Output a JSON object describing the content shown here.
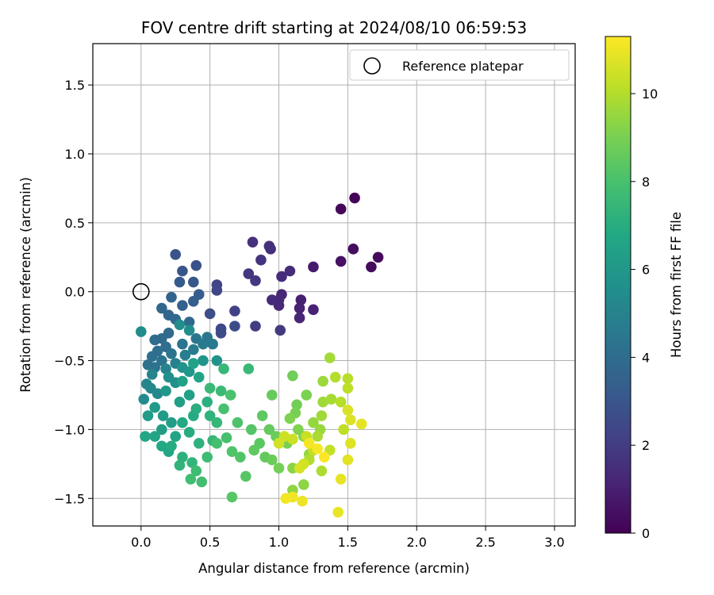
{
  "chart_data": {
    "type": "scatter",
    "title": "FOV centre drift starting at 2024/08/10 06:59:53",
    "xlabel": "Angular distance from reference (arcmin)",
    "ylabel": "Rotation from reference (arcmin)",
    "xlim": [
      -0.35,
      3.15
    ],
    "ylim": [
      -1.7,
      1.8
    ],
    "xticks": [
      0.0,
      0.5,
      1.0,
      1.5,
      2.0,
      2.5,
      3.0
    ],
    "xtick_labels": [
      "0.0",
      "0.5",
      "1.0",
      "1.5",
      "2.0",
      "2.5",
      "3.0"
    ],
    "yticks": [
      -1.5,
      -1.0,
      -0.5,
      0.0,
      0.5,
      1.0,
      1.5
    ],
    "ytick_labels": [
      "−1.5",
      "−1.0",
      "−0.5",
      "0.0",
      "0.5",
      "1.0",
      "1.5"
    ],
    "grid": true,
    "legend": {
      "position": "top-right",
      "entries": [
        "Reference platepar"
      ]
    },
    "reference_point": {
      "x": 0.0,
      "y": 0.0
    },
    "colorbar": {
      "label": "Hours from first FF file",
      "min": 0,
      "max": 11.3,
      "ticks": [
        0,
        2,
        4,
        6,
        8,
        10
      ],
      "tick_labels": [
        "0",
        "2",
        "4",
        "6",
        "8",
        "10"
      ],
      "colormap": "viridis"
    },
    "points": [
      {
        "x": 1.55,
        "y": 0.68,
        "h": 0.1
      },
      {
        "x": 1.45,
        "y": 0.6,
        "h": 0.2
      },
      {
        "x": 1.72,
        "y": 0.25,
        "h": 0.3
      },
      {
        "x": 1.67,
        "y": 0.18,
        "h": 0.35
      },
      {
        "x": 1.54,
        "y": 0.31,
        "h": 0.4
      },
      {
        "x": 1.45,
        "y": 0.22,
        "h": 0.5
      },
      {
        "x": 1.25,
        "y": 0.18,
        "h": 0.8
      },
      {
        "x": 1.16,
        "y": -0.06,
        "h": 1.0
      },
      {
        "x": 1.15,
        "y": -0.12,
        "h": 1.05
      },
      {
        "x": 1.25,
        "y": -0.13,
        "h": 1.1
      },
      {
        "x": 1.15,
        "y": -0.19,
        "h": 1.15
      },
      {
        "x": 1.02,
        "y": -0.02,
        "h": 1.2
      },
      {
        "x": 1.0,
        "y": -0.06,
        "h": 1.25
      },
      {
        "x": 1.0,
        "y": -0.1,
        "h": 1.3
      },
      {
        "x": 0.95,
        "y": -0.06,
        "h": 1.35
      },
      {
        "x": 1.08,
        "y": 0.15,
        "h": 1.4
      },
      {
        "x": 1.02,
        "y": 0.11,
        "h": 1.45
      },
      {
        "x": 0.94,
        "y": 0.31,
        "h": 1.5
      },
      {
        "x": 0.93,
        "y": 0.33,
        "h": 1.55
      },
      {
        "x": 0.81,
        "y": 0.36,
        "h": 1.6
      },
      {
        "x": 0.87,
        "y": 0.23,
        "h": 1.7
      },
      {
        "x": 0.78,
        "y": 0.13,
        "h": 1.75
      },
      {
        "x": 0.83,
        "y": 0.08,
        "h": 1.8
      },
      {
        "x": 1.01,
        "y": -0.28,
        "h": 1.9
      },
      {
        "x": 0.83,
        "y": -0.25,
        "h": 2.0
      },
      {
        "x": 0.68,
        "y": -0.14,
        "h": 2.2
      },
      {
        "x": 0.55,
        "y": 0.05,
        "h": 2.3
      },
      {
        "x": 0.55,
        "y": 0.01,
        "h": 2.4
      },
      {
        "x": 0.58,
        "y": -0.27,
        "h": 2.5
      },
      {
        "x": 0.58,
        "y": -0.3,
        "h": 2.55
      },
      {
        "x": 0.68,
        "y": -0.25,
        "h": 2.6
      },
      {
        "x": 0.5,
        "y": -0.16,
        "h": 2.7
      },
      {
        "x": 0.4,
        "y": 0.19,
        "h": 2.8
      },
      {
        "x": 0.25,
        "y": 0.27,
        "h": 2.9
      },
      {
        "x": 0.3,
        "y": 0.15,
        "h": 3.0
      },
      {
        "x": 0.38,
        "y": 0.07,
        "h": 3.1
      },
      {
        "x": 0.28,
        "y": 0.07,
        "h": 3.2
      },
      {
        "x": 0.42,
        "y": -0.02,
        "h": 3.3
      },
      {
        "x": 0.38,
        "y": -0.07,
        "h": 3.4
      },
      {
        "x": 0.3,
        "y": -0.1,
        "h": 3.5
      },
      {
        "x": 0.22,
        "y": -0.04,
        "h": 3.6
      },
      {
        "x": 0.2,
        "y": -0.17,
        "h": 3.7
      },
      {
        "x": 0.15,
        "y": -0.12,
        "h": 3.75
      },
      {
        "x": 0.25,
        "y": -0.2,
        "h": 3.8
      },
      {
        "x": 0.35,
        "y": -0.22,
        "h": 3.85
      },
      {
        "x": 0.2,
        "y": -0.3,
        "h": 3.9
      },
      {
        "x": 0.15,
        "y": -0.34,
        "h": 3.95
      },
      {
        "x": 0.1,
        "y": -0.35,
        "h": 4.0
      },
      {
        "x": 0.18,
        "y": -0.4,
        "h": 4.05
      },
      {
        "x": 0.12,
        "y": -0.43,
        "h": 4.1
      },
      {
        "x": 0.08,
        "y": -0.47,
        "h": 4.15
      },
      {
        "x": 0.05,
        "y": -0.53,
        "h": 4.2
      },
      {
        "x": 0.1,
        "y": -0.55,
        "h": 4.25
      },
      {
        "x": 0.15,
        "y": -0.5,
        "h": 4.3
      },
      {
        "x": 0.22,
        "y": -0.45,
        "h": 4.35
      },
      {
        "x": 0.3,
        "y": -0.38,
        "h": 4.4
      },
      {
        "x": 0.4,
        "y": -0.34,
        "h": 4.45
      },
      {
        "x": 0.48,
        "y": -0.33,
        "h": 4.5
      },
      {
        "x": 0.52,
        "y": -0.38,
        "h": 4.55
      },
      {
        "x": 0.45,
        "y": -0.38,
        "h": 4.6
      },
      {
        "x": 0.38,
        "y": -0.42,
        "h": 4.7
      },
      {
        "x": 0.32,
        "y": -0.46,
        "h": 4.8
      },
      {
        "x": 0.25,
        "y": -0.52,
        "h": 4.9
      },
      {
        "x": 0.18,
        "y": -0.56,
        "h": 5.0
      },
      {
        "x": 0.08,
        "y": -0.6,
        "h": 5.05
      },
      {
        "x": 0.04,
        "y": -0.67,
        "h": 5.1
      },
      {
        "x": 0.07,
        "y": -0.7,
        "h": 5.2
      },
      {
        "x": 0.12,
        "y": -0.74,
        "h": 5.3
      },
      {
        "x": 0.02,
        "y": -0.78,
        "h": 5.35
      },
      {
        "x": 0.0,
        "y": -0.29,
        "h": 5.4
      },
      {
        "x": 0.28,
        "y": -0.24,
        "h": 5.45
      },
      {
        "x": 0.35,
        "y": -0.28,
        "h": 5.5
      },
      {
        "x": 0.2,
        "y": -0.62,
        "h": 5.55
      },
      {
        "x": 0.25,
        "y": -0.66,
        "h": 5.6
      },
      {
        "x": 0.3,
        "y": -0.55,
        "h": 5.7
      },
      {
        "x": 0.55,
        "y": -0.5,
        "h": 5.75
      },
      {
        "x": 0.45,
        "y": -0.5,
        "h": 5.8
      },
      {
        "x": 0.35,
        "y": -0.58,
        "h": 5.9
      },
      {
        "x": 0.18,
        "y": -0.72,
        "h": 6.0
      },
      {
        "x": 0.1,
        "y": -0.84,
        "h": 6.1
      },
      {
        "x": 0.16,
        "y": -0.9,
        "h": 6.15
      },
      {
        "x": 0.05,
        "y": -0.9,
        "h": 6.2
      },
      {
        "x": 0.22,
        "y": -0.95,
        "h": 6.25
      },
      {
        "x": 0.15,
        "y": -1.0,
        "h": 6.3
      },
      {
        "x": 0.28,
        "y": -0.8,
        "h": 6.35
      },
      {
        "x": 0.35,
        "y": -0.75,
        "h": 6.4
      },
      {
        "x": 0.3,
        "y": -0.65,
        "h": 6.45
      },
      {
        "x": 0.38,
        "y": -0.52,
        "h": 6.5
      },
      {
        "x": 0.42,
        "y": -0.62,
        "h": 6.55
      },
      {
        "x": 0.25,
        "y": -1.05,
        "h": 6.6
      },
      {
        "x": 0.1,
        "y": -1.05,
        "h": 6.65
      },
      {
        "x": 0.03,
        "y": -1.05,
        "h": 6.7
      },
      {
        "x": 0.2,
        "y": -1.16,
        "h": 6.75
      },
      {
        "x": 0.15,
        "y": -1.12,
        "h": 6.8
      },
      {
        "x": 0.3,
        "y": -0.95,
        "h": 6.85
      },
      {
        "x": 0.38,
        "y": -0.9,
        "h": 6.9
      },
      {
        "x": 0.22,
        "y": -1.12,
        "h": 6.95
      },
      {
        "x": 0.35,
        "y": -1.02,
        "h": 7.0
      },
      {
        "x": 0.4,
        "y": -0.85,
        "h": 7.05
      },
      {
        "x": 0.48,
        "y": -0.8,
        "h": 7.1
      },
      {
        "x": 0.3,
        "y": -1.2,
        "h": 7.15
      },
      {
        "x": 0.42,
        "y": -1.1,
        "h": 7.2
      },
      {
        "x": 0.5,
        "y": -0.9,
        "h": 7.25
      },
      {
        "x": 0.28,
        "y": -1.26,
        "h": 7.3
      },
      {
        "x": 0.37,
        "y": -1.24,
        "h": 7.35
      },
      {
        "x": 0.52,
        "y": -1.08,
        "h": 7.4
      },
      {
        "x": 0.55,
        "y": -0.95,
        "h": 7.45
      },
      {
        "x": 0.6,
        "y": -0.56,
        "h": 7.5
      },
      {
        "x": 0.78,
        "y": -0.56,
        "h": 7.55
      },
      {
        "x": 0.5,
        "y": -0.7,
        "h": 7.6
      },
      {
        "x": 0.58,
        "y": -0.72,
        "h": 7.65
      },
      {
        "x": 0.48,
        "y": -1.2,
        "h": 7.7
      },
      {
        "x": 0.4,
        "y": -1.3,
        "h": 7.75
      },
      {
        "x": 0.36,
        "y": -1.36,
        "h": 7.8
      },
      {
        "x": 0.44,
        "y": -1.38,
        "h": 7.85
      },
      {
        "x": 0.55,
        "y": -1.1,
        "h": 7.9
      },
      {
        "x": 0.62,
        "y": -1.06,
        "h": 7.95
      },
      {
        "x": 0.6,
        "y": -0.85,
        "h": 8.0
      },
      {
        "x": 0.65,
        "y": -0.75,
        "h": 8.05
      },
      {
        "x": 0.7,
        "y": -0.95,
        "h": 8.1
      },
      {
        "x": 0.66,
        "y": -1.16,
        "h": 8.15
      },
      {
        "x": 0.72,
        "y": -1.2,
        "h": 8.2
      },
      {
        "x": 0.8,
        "y": -1.0,
        "h": 8.25
      },
      {
        "x": 0.76,
        "y": -1.34,
        "h": 8.3
      },
      {
        "x": 0.66,
        "y": -1.49,
        "h": 8.35
      },
      {
        "x": 0.86,
        "y": -1.1,
        "h": 8.4
      },
      {
        "x": 0.88,
        "y": -0.9,
        "h": 8.45
      },
      {
        "x": 0.82,
        "y": -1.15,
        "h": 8.5
      },
      {
        "x": 0.9,
        "y": -1.2,
        "h": 8.55
      },
      {
        "x": 0.93,
        "y": -1.0,
        "h": 8.6
      },
      {
        "x": 0.95,
        "y": -0.75,
        "h": 8.65
      },
      {
        "x": 0.98,
        "y": -1.05,
        "h": 8.7
      },
      {
        "x": 0.95,
        "y": -1.22,
        "h": 8.75
      },
      {
        "x": 1.1,
        "y": -0.61,
        "h": 8.8
      },
      {
        "x": 1.13,
        "y": -0.82,
        "h": 8.85
      },
      {
        "x": 1.0,
        "y": -1.28,
        "h": 8.9
      },
      {
        "x": 1.06,
        "y": -1.1,
        "h": 8.95
      },
      {
        "x": 1.12,
        "y": -0.88,
        "h": 9.0
      },
      {
        "x": 1.2,
        "y": -0.75,
        "h": 9.05
      },
      {
        "x": 1.08,
        "y": -0.92,
        "h": 9.1
      },
      {
        "x": 1.14,
        "y": -1.0,
        "h": 9.15
      },
      {
        "x": 1.18,
        "y": -1.05,
        "h": 9.2
      },
      {
        "x": 1.1,
        "y": -1.28,
        "h": 9.3
      },
      {
        "x": 1.18,
        "y": -1.4,
        "h": 9.35
      },
      {
        "x": 1.1,
        "y": -1.44,
        "h": 9.4
      },
      {
        "x": 1.22,
        "y": -1.18,
        "h": 9.45
      },
      {
        "x": 1.25,
        "y": -0.95,
        "h": 9.5
      },
      {
        "x": 1.3,
        "y": -1.0,
        "h": 9.55
      },
      {
        "x": 1.32,
        "y": -0.65,
        "h": 9.6
      },
      {
        "x": 1.32,
        "y": -0.8,
        "h": 9.65
      },
      {
        "x": 1.31,
        "y": -0.9,
        "h": 9.7
      },
      {
        "x": 1.37,
        "y": -0.48,
        "h": 9.75
      },
      {
        "x": 1.38,
        "y": -0.78,
        "h": 9.8
      },
      {
        "x": 1.28,
        "y": -1.05,
        "h": 9.85
      },
      {
        "x": 1.31,
        "y": -1.3,
        "h": 9.9
      },
      {
        "x": 1.22,
        "y": -1.22,
        "h": 9.95
      },
      {
        "x": 1.41,
        "y": -0.62,
        "h": 10.0
      },
      {
        "x": 1.45,
        "y": -0.8,
        "h": 10.05
      },
      {
        "x": 1.5,
        "y": -0.63,
        "h": 10.1
      },
      {
        "x": 1.5,
        "y": -0.7,
        "h": 10.15
      },
      {
        "x": 1.47,
        "y": -1.0,
        "h": 10.2
      },
      {
        "x": 1.37,
        "y": -1.15,
        "h": 10.25
      },
      {
        "x": 1.25,
        "y": -1.15,
        "h": 10.3
      },
      {
        "x": 1.2,
        "y": -1.05,
        "h": 10.35
      },
      {
        "x": 1.1,
        "y": -1.07,
        "h": 10.4
      },
      {
        "x": 1.04,
        "y": -1.05,
        "h": 10.45
      },
      {
        "x": 1.0,
        "y": -1.1,
        "h": 10.5
      },
      {
        "x": 1.18,
        "y": -1.25,
        "h": 10.55
      },
      {
        "x": 1.15,
        "y": -1.28,
        "h": 10.6
      },
      {
        "x": 1.5,
        "y": -0.86,
        "h": 10.65
      },
      {
        "x": 1.52,
        "y": -0.93,
        "h": 10.7
      },
      {
        "x": 1.52,
        "y": -1.1,
        "h": 10.75
      },
      {
        "x": 1.5,
        "y": -1.22,
        "h": 10.8
      },
      {
        "x": 1.6,
        "y": -0.96,
        "h": 10.85
      },
      {
        "x": 1.45,
        "y": -1.36,
        "h": 10.9
      },
      {
        "x": 1.43,
        "y": -1.6,
        "h": 10.95
      },
      {
        "x": 1.17,
        "y": -1.52,
        "h": 11.0
      },
      {
        "x": 1.1,
        "y": -1.49,
        "h": 11.05
      },
      {
        "x": 1.05,
        "y": -1.5,
        "h": 11.1
      },
      {
        "x": 1.22,
        "y": -1.1,
        "h": 11.15
      },
      {
        "x": 1.28,
        "y": -1.14,
        "h": 11.2
      },
      {
        "x": 1.33,
        "y": -1.2,
        "h": 11.25
      }
    ]
  }
}
